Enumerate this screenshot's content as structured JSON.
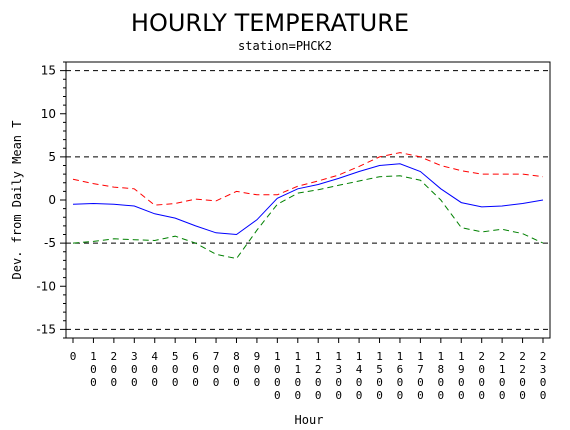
{
  "chart_data": {
    "type": "line",
    "title": "HOURLY TEMPERATURE",
    "subtitle": "station=PHCK2",
    "xlabel": "Hour",
    "ylabel": "Dev. from Daily Mean T",
    "x": [
      0,
      1,
      2,
      3,
      4,
      5,
      6,
      7,
      8,
      9,
      10,
      11,
      12,
      13,
      14,
      15,
      16,
      17,
      18,
      19,
      20,
      21,
      22,
      23
    ],
    "x_tick_labels": [
      "0",
      "100",
      "200",
      "300",
      "400",
      "500",
      "600",
      "700",
      "800",
      "900",
      "1000",
      "1100",
      "1200",
      "1300",
      "1400",
      "1500",
      "1600",
      "1700",
      "1800",
      "1900",
      "2000",
      "2100",
      "2200",
      "2300"
    ],
    "ylim": [
      -16,
      16
    ],
    "y_ticks": [
      -15,
      -10,
      -5,
      0,
      5,
      10,
      15
    ],
    "reference_lines": [
      -15,
      -5,
      5,
      15
    ],
    "series": [
      {
        "color": "#ff0000",
        "dash": "dashed",
        "values": [
          2.4,
          1.9,
          1.5,
          1.3,
          -0.6,
          -0.4,
          0.1,
          -0.1,
          1.0,
          0.6,
          0.6,
          1.6,
          2.2,
          2.9,
          3.9,
          5.0,
          5.5,
          5.0,
          4.0,
          3.4,
          3.0,
          3.0,
          3.0,
          2.7
        ]
      },
      {
        "color": "#0000ff",
        "dash": "solid",
        "values": [
          -0.5,
          -0.4,
          -0.5,
          -0.7,
          -1.6,
          -2.1,
          -3.0,
          -3.8,
          -4.0,
          -2.3,
          0.2,
          1.3,
          1.8,
          2.5,
          3.3,
          4.0,
          4.2,
          3.3,
          1.3,
          -0.3,
          -0.8,
          -0.7,
          -0.4,
          0.0
        ]
      },
      {
        "color": "#008000",
        "dash": "dashed",
        "values": [
          -5.0,
          -4.8,
          -4.5,
          -4.6,
          -4.7,
          -4.2,
          -5.0,
          -6.3,
          -6.8,
          -3.5,
          -0.5,
          0.8,
          1.2,
          1.7,
          2.2,
          2.7,
          2.8,
          2.3,
          0.0,
          -3.2,
          -3.7,
          -3.4,
          -3.9,
          -5.0
        ]
      }
    ]
  }
}
